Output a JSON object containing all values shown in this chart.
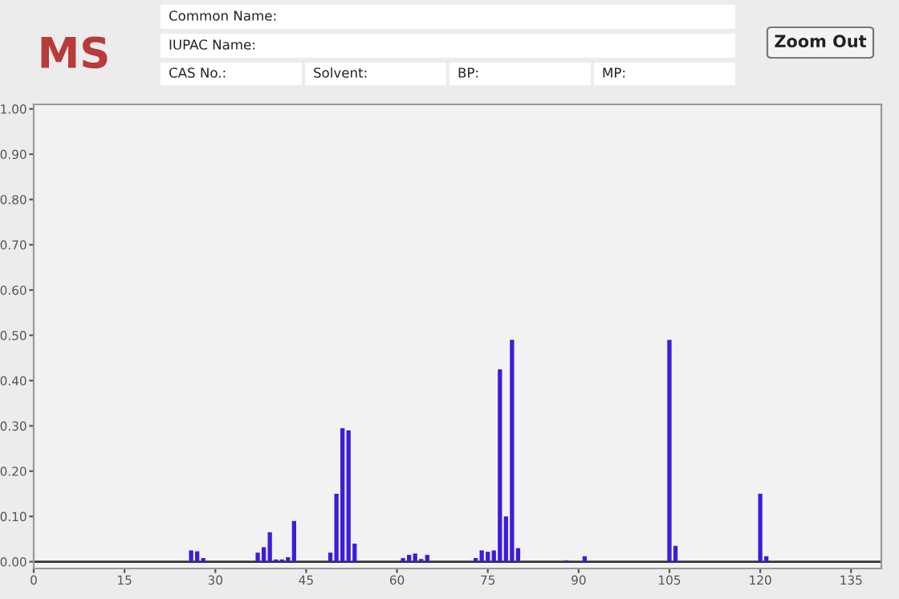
{
  "chart_data": {
    "type": "bar",
    "title": "MS",
    "annotations": [
      "Common Name:",
      "IUPAC Name:",
      "CAS No.:",
      "Solvent:",
      "BP:",
      "MP:",
      "Zoom Out"
    ],
    "x": [
      26,
      27,
      28,
      37,
      38,
      39,
      40,
      41,
      42,
      43,
      49,
      50,
      51,
      52,
      53,
      61,
      62,
      63,
      64,
      65,
      73,
      74,
      75,
      76,
      77,
      78,
      79,
      80,
      88,
      91,
      105,
      106,
      120,
      121
    ],
    "values": [
      0.025,
      0.023,
      0.008,
      0.02,
      0.032,
      0.065,
      0.005,
      0.005,
      0.01,
      0.09,
      0.02,
      0.15,
      0.295,
      0.29,
      0.04,
      0.008,
      0.015,
      0.018,
      0.006,
      0.015,
      0.008,
      0.025,
      0.022,
      0.025,
      0.425,
      0.1,
      0.49,
      0.03,
      0.003,
      0.012,
      0.49,
      0.035,
      0.15,
      0.012
    ],
    "color": "#3a1ed8",
    "xlim": [
      0,
      140
    ],
    "ylim": [
      -0.015,
      1.01
    ],
    "xticks": [
      0,
      15,
      30,
      45,
      60,
      75,
      90,
      105,
      120,
      135
    ],
    "yticks": [
      {
        "value": 0,
        "label": "0.00"
      },
      {
        "value": 0.1,
        "label": "0.10"
      },
      {
        "value": 0.2,
        "label": "0.20"
      },
      {
        "value": 0.3,
        "label": "0.30"
      },
      {
        "value": 0.4,
        "label": "0.40"
      },
      {
        "value": 0.5,
        "label": "0.50"
      },
      {
        "value": 0.6,
        "label": "0.60"
      },
      {
        "value": 0.7,
        "label": "0.70"
      },
      {
        "value": 0.8,
        "label": "0.80"
      },
      {
        "value": 0.9,
        "label": "0.90"
      },
      {
        "value": 1.0,
        "label": "1.00"
      }
    ],
    "ref_lines": [
      {
        "axis": "y",
        "value": 0,
        "color": "#333333"
      }
    ],
    "grid": false,
    "legend": false
  }
}
